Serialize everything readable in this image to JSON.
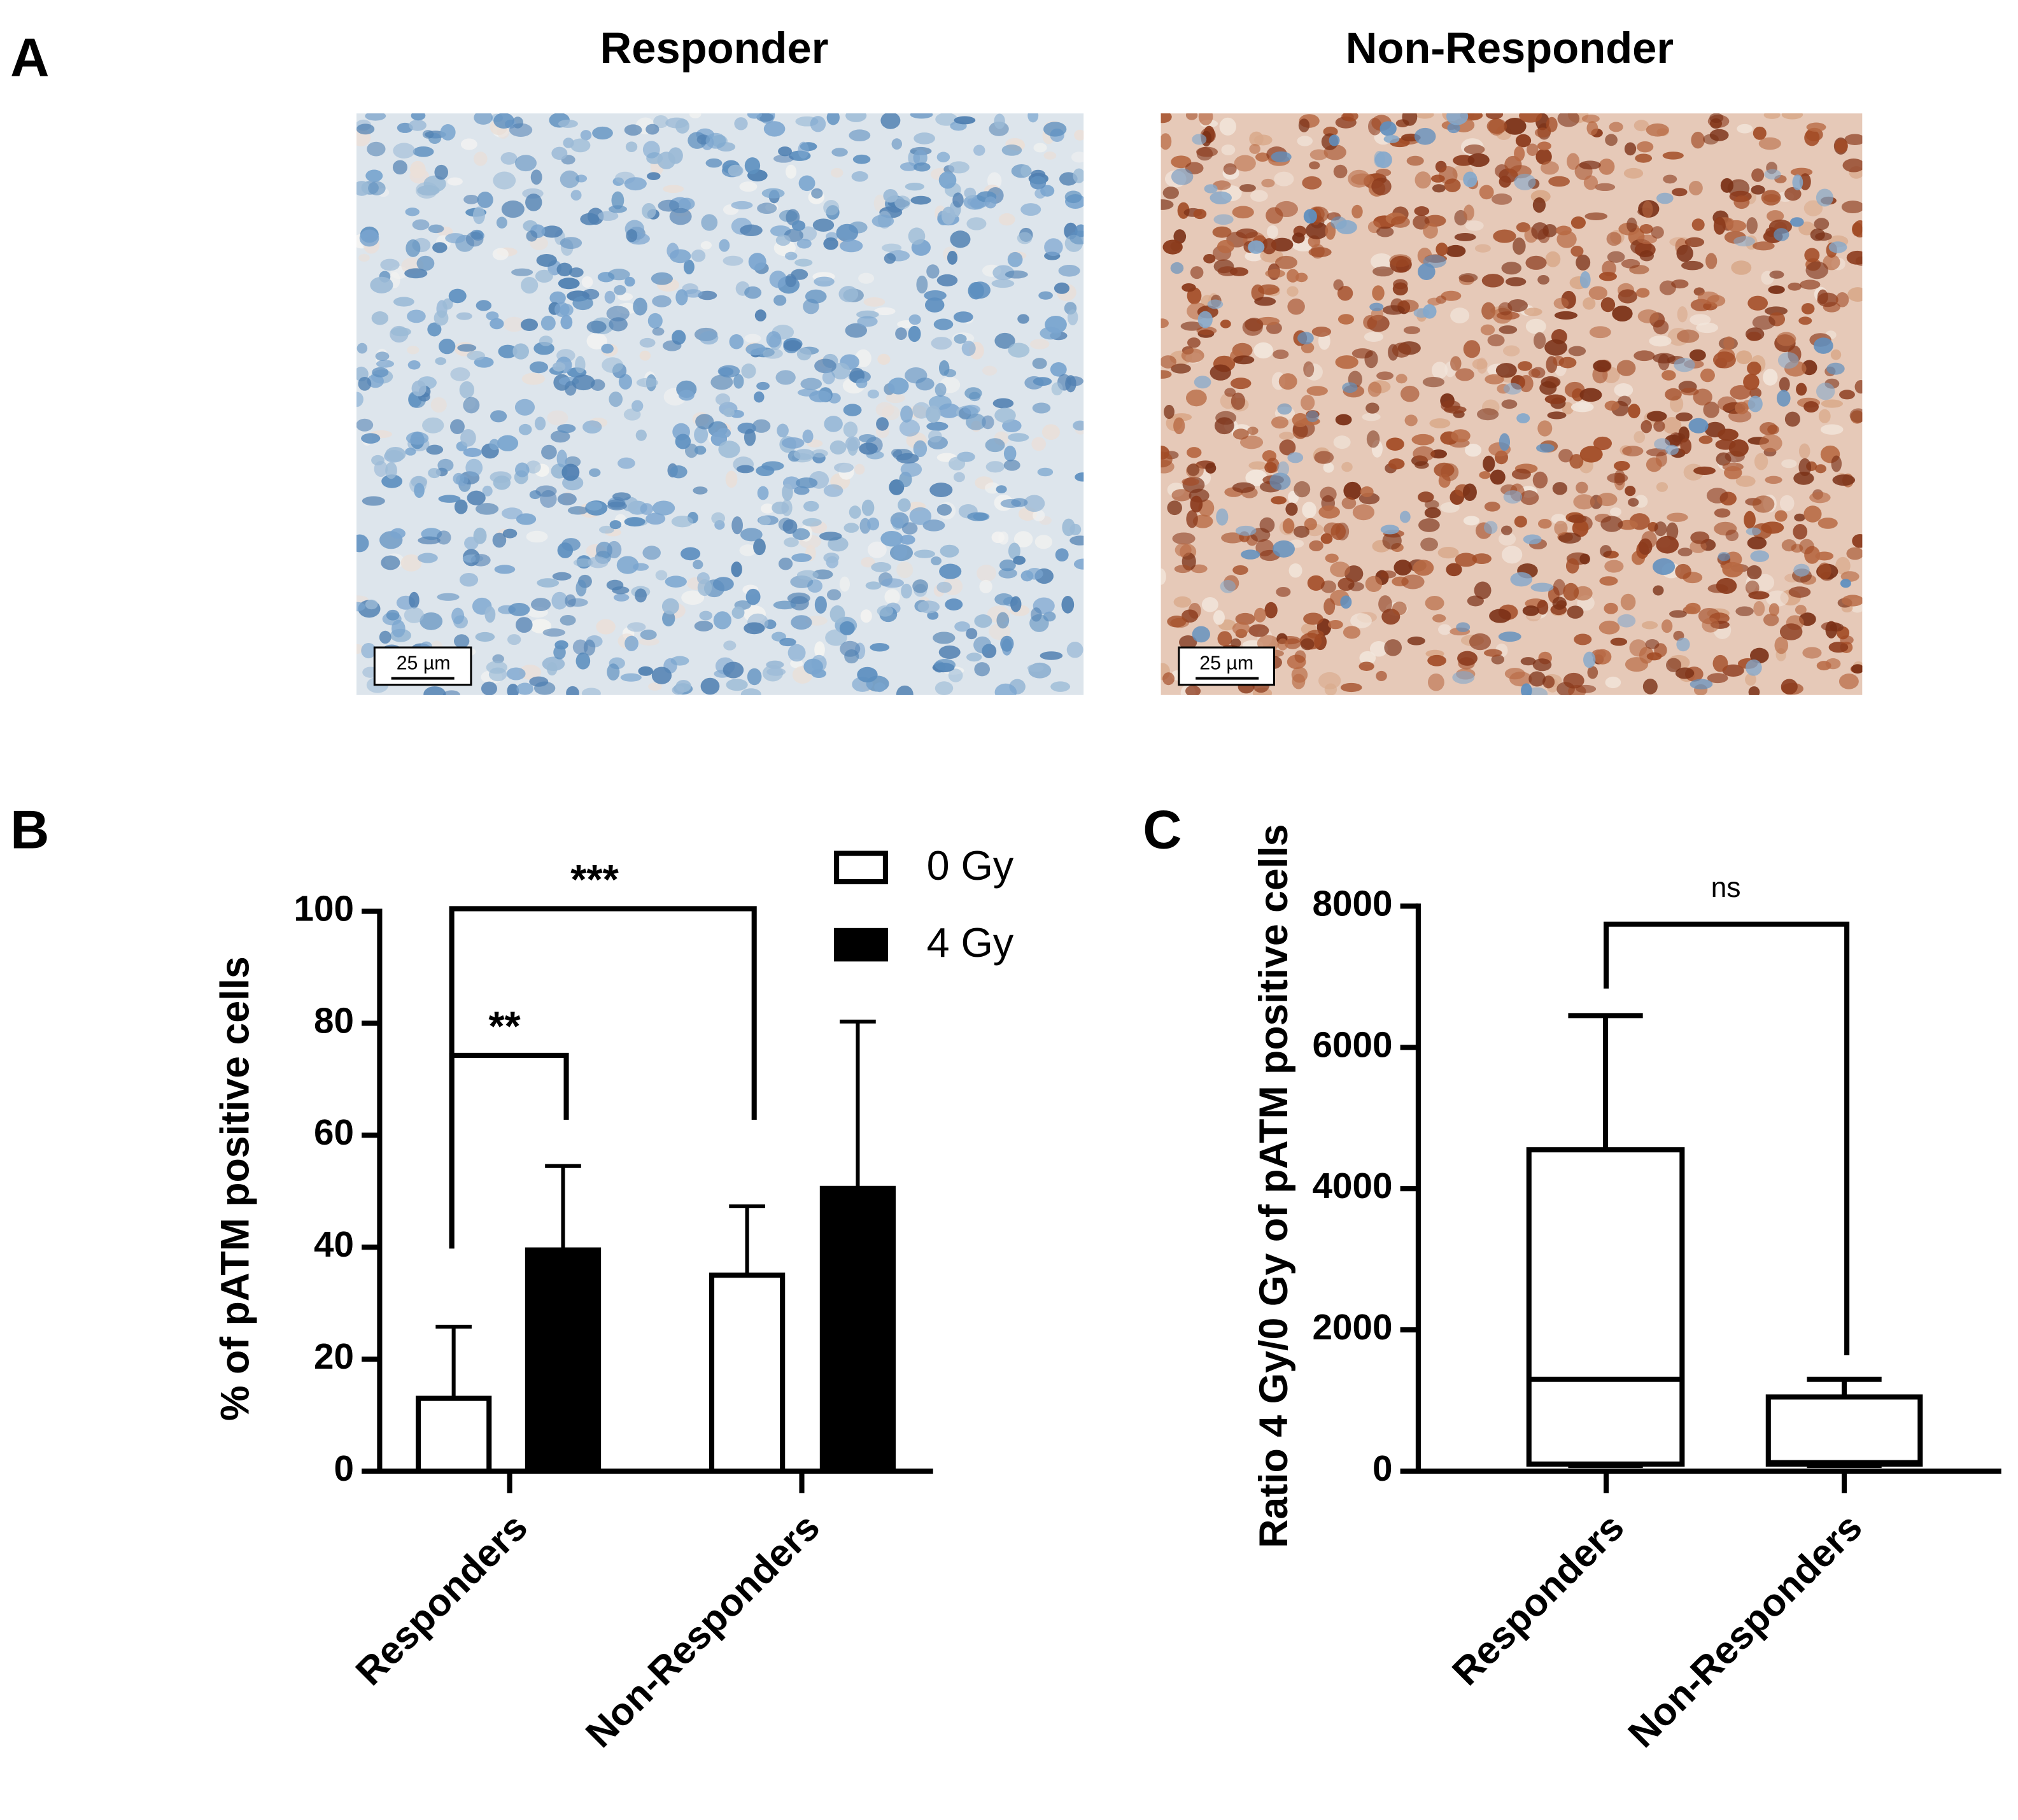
{
  "panel_a": {
    "label": "A",
    "images": [
      {
        "title": "Responder",
        "scale_bar": "25 µm"
      },
      {
        "title": "Non-Responder",
        "scale_bar": "25 µm"
      }
    ]
  },
  "chart_data": [
    {
      "type": "bar",
      "panel_label": "B",
      "ylabel": "% of pATM positive cells",
      "categories": [
        "Responders",
        "Non-Responders"
      ],
      "series": [
        {
          "name": "0 Gy",
          "color": "#ffffff",
          "values": [
            13,
            35
          ],
          "errors": [
            12.8,
            12.3
          ]
        },
        {
          "name": "4 Gy",
          "color": "#000000",
          "values": [
            39.5,
            50.5
          ],
          "errors": [
            15,
            29.8
          ]
        }
      ],
      "ylim": [
        0,
        100
      ],
      "yticks": [
        0,
        20,
        40,
        60,
        80,
        100
      ],
      "significance": [
        {
          "label": "***"
        },
        {
          "label": "**"
        }
      ]
    },
    {
      "type": "box",
      "panel_label": "C",
      "ylabel": "Ratio 4 Gy/0 Gy of pATM positive cells",
      "categories": [
        "Responders",
        "Non-Responders"
      ],
      "color": "#000000",
      "boxes": [
        {
          "min": 80,
          "q1": 100,
          "median": 1300,
          "q3": 4550,
          "max": 6450
        },
        {
          "min": 80,
          "q1": 100,
          "median": 120,
          "q3": 1050,
          "max": 1300
        }
      ],
      "ylim": [
        0,
        8000
      ],
      "yticks": [
        0,
        2000,
        4000,
        6000,
        8000
      ],
      "significance": [
        {
          "label": "ns"
        }
      ]
    }
  ]
}
